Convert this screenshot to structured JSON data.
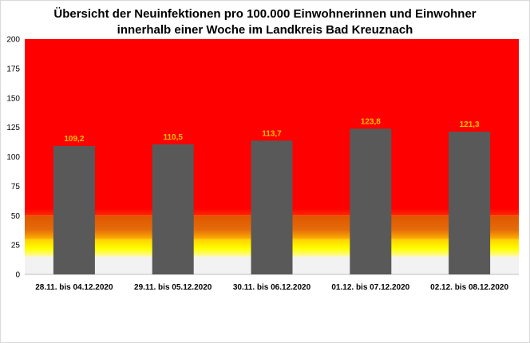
{
  "chart_data": {
    "type": "bar",
    "title_line1": "Übersicht der Neuinfektionen pro 100.000 Einwohnerinnen und Einwohner",
    "title_line2": "innerhalb einer Woche im Landkreis Bad Kreuznach",
    "categories": [
      "28.11. bis 04.12.2020",
      "29.11. bis 05.12.2020",
      "30.11. bis 06.12.2020",
      "01.12. bis 07.12.2020",
      "02.12. bis 08.12.2020"
    ],
    "values": [
      109.2,
      110.5,
      113.7,
      123.8,
      121.3
    ],
    "data_labels": [
      "109,2",
      "110,5",
      "113,7",
      "123,8",
      "121,3"
    ],
    "ylim": [
      0,
      200
    ],
    "yticks": [
      0,
      25,
      50,
      75,
      100,
      125,
      150,
      175,
      200
    ],
    "xlabel": "",
    "ylabel": "",
    "grid": false,
    "bar_color": "#595959",
    "label_color": "#ffc000",
    "background_bands": [
      {
        "from": 0,
        "to": 15,
        "color": "#f2f2f2"
      },
      {
        "from": 15,
        "to": 30,
        "color": "#ffff00"
      },
      {
        "from": 30,
        "to": 50,
        "color": "#e46c0a"
      },
      {
        "from": 50,
        "to": 200,
        "color": "#ff0000"
      }
    ]
  }
}
